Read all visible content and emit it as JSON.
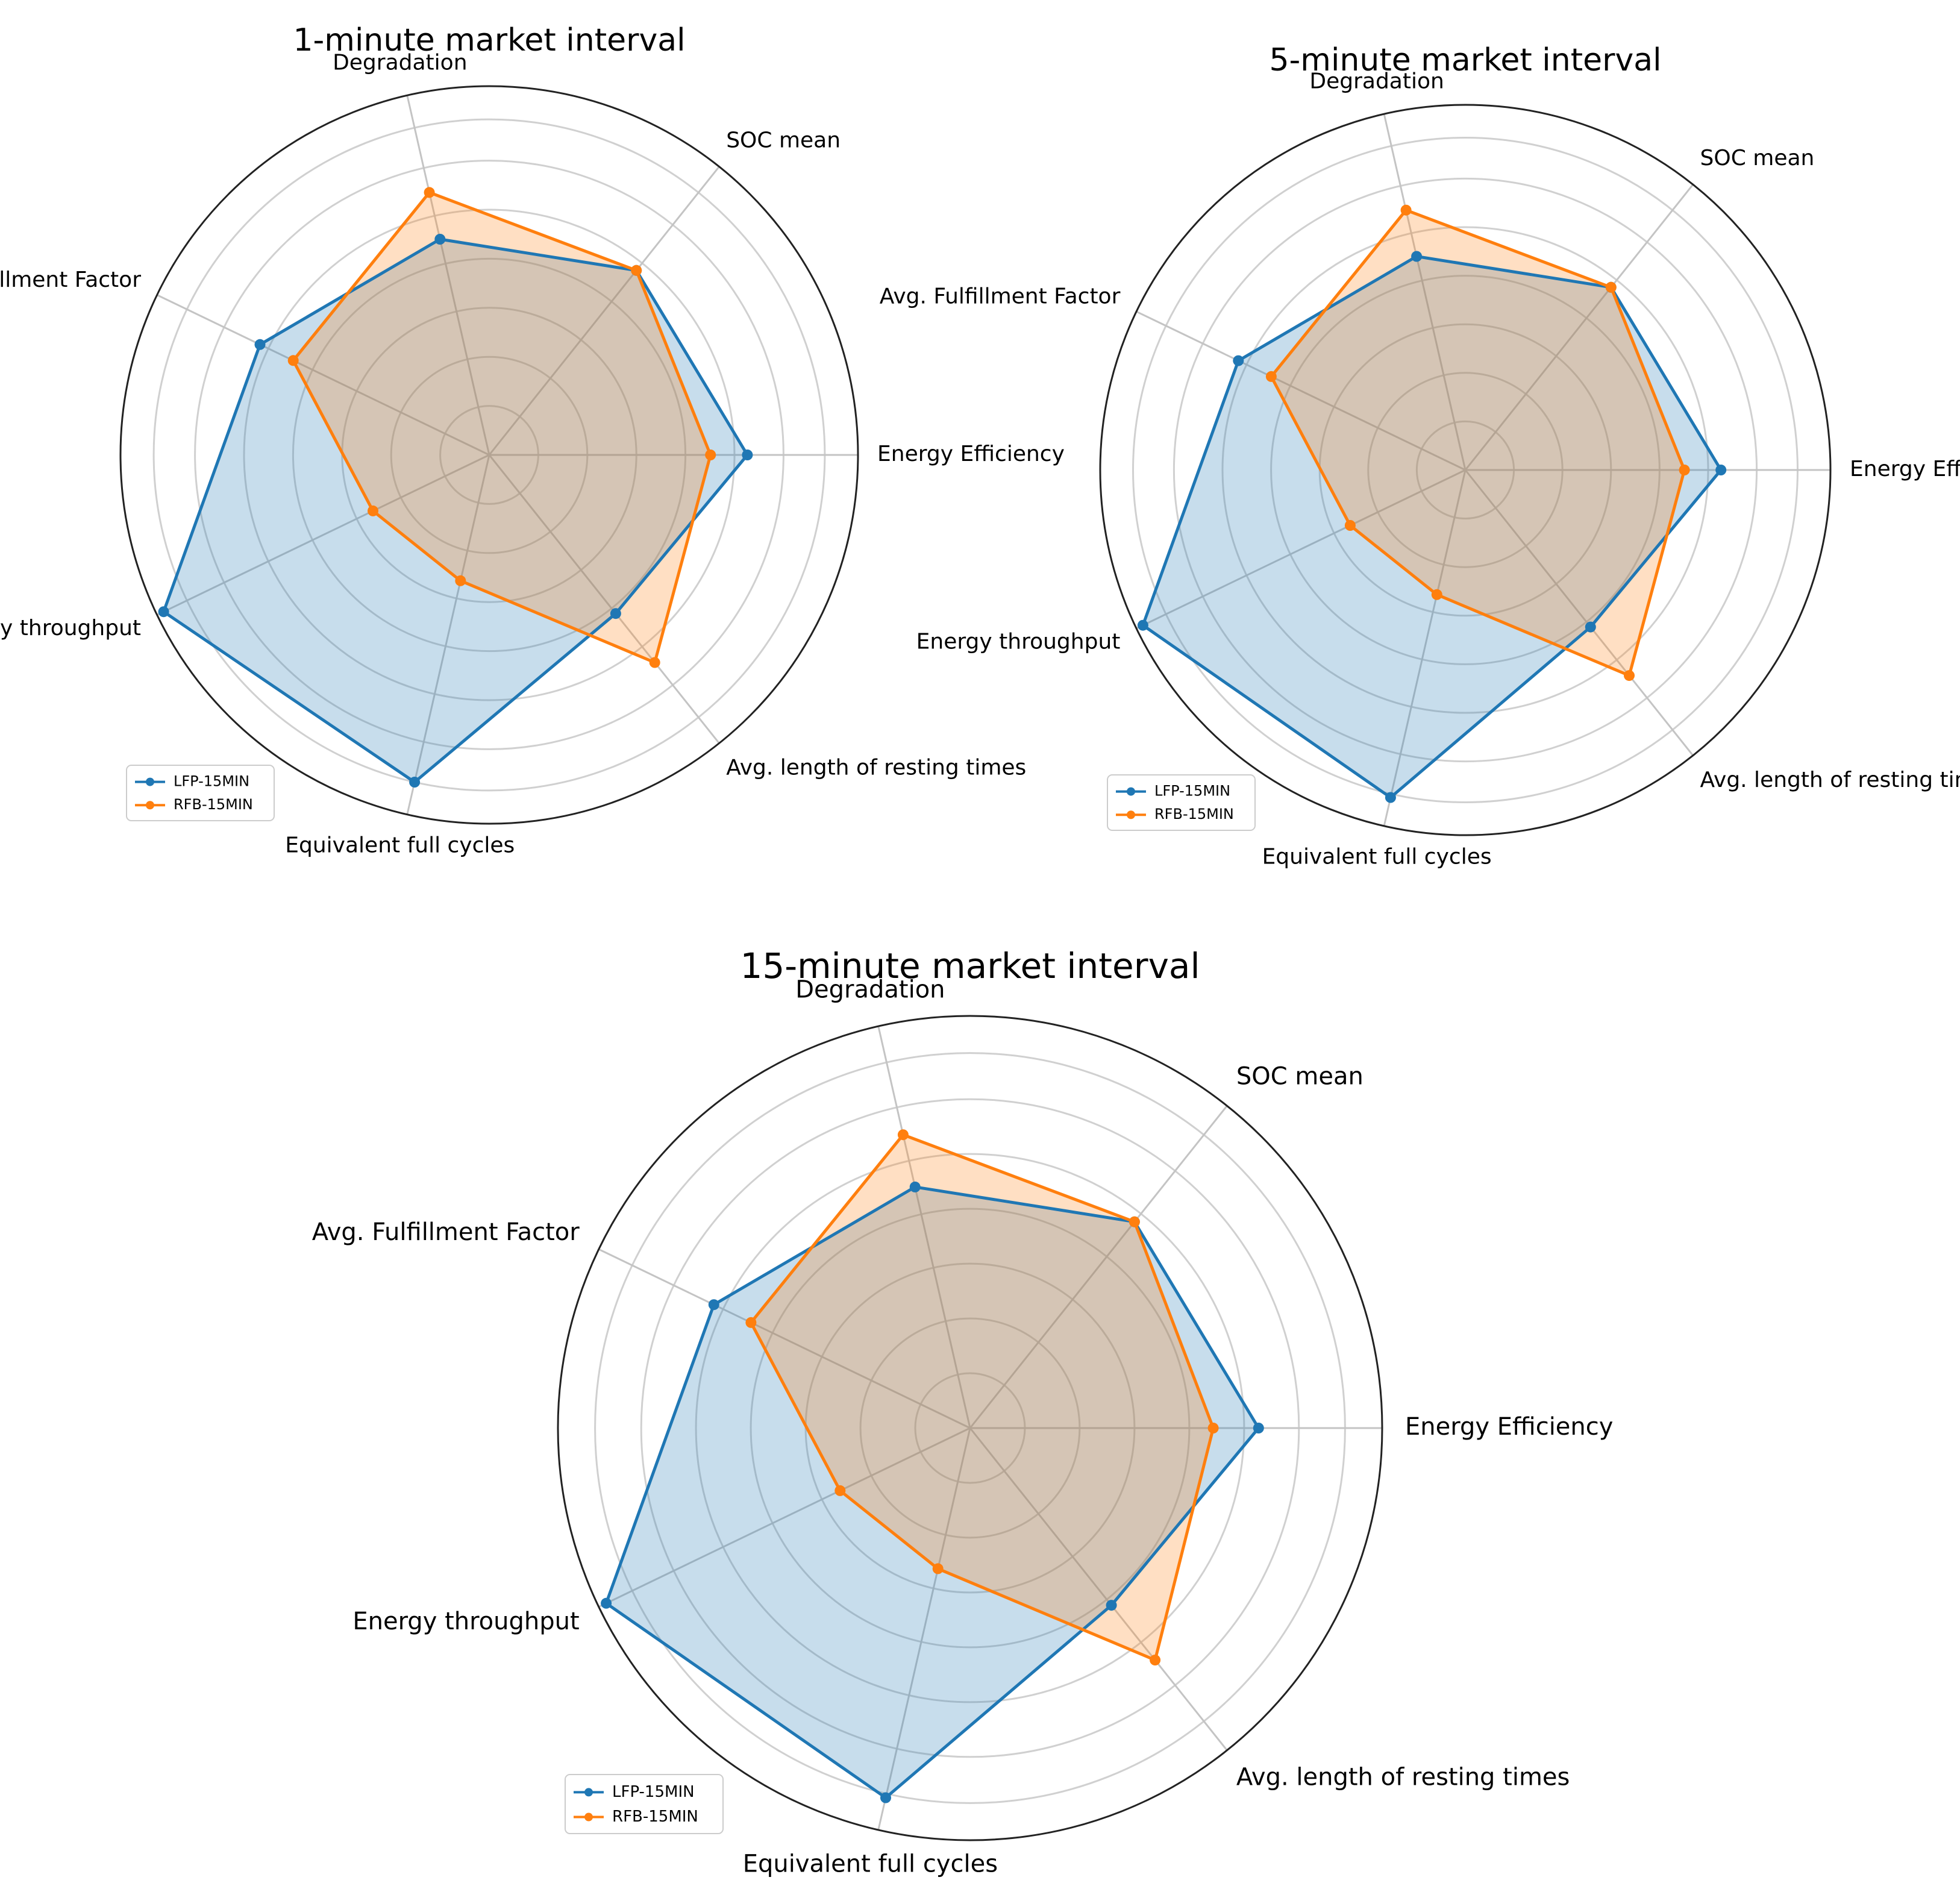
{
  "chart_data": [
    {
      "type": "radar",
      "title": "1-minute market interval",
      "axes": [
        "Energy Efficiency",
        "SOC mean",
        "Degradation",
        "Avg. Fulfillment Factor",
        "Energy throughput",
        "Equivalent full cycles",
        "Avg. length of resting times"
      ],
      "rlim": [
        0,
        1
      ],
      "grid": true,
      "legend_position": "lower-left",
      "series": [
        {
          "name": "LFP-15MIN",
          "color": "#1f77b4",
          "values": [
            0.7,
            0.64,
            0.6,
            0.69,
            0.98,
            0.91,
            0.55
          ]
        },
        {
          "name": "RFB-15MIN",
          "color": "#ff7f0e",
          "values": [
            0.6,
            0.64,
            0.73,
            0.59,
            0.35,
            0.35,
            0.72
          ]
        }
      ]
    },
    {
      "type": "radar",
      "title": "5-minute market interval",
      "axes": [
        "Energy Efficiency",
        "SOC mean",
        "Degradation",
        "Avg. Fulfillment Factor",
        "Energy throughput",
        "Equivalent full cycles",
        "Avg. length of resting times"
      ],
      "rlim": [
        0,
        1
      ],
      "grid": true,
      "legend_position": "lower-left",
      "series": [
        {
          "name": "LFP-15MIN",
          "color": "#1f77b4",
          "values": [
            0.7,
            0.64,
            0.6,
            0.69,
            0.98,
            0.92,
            0.55
          ]
        },
        {
          "name": "RFB-15MIN",
          "color": "#ff7f0e",
          "values": [
            0.6,
            0.64,
            0.73,
            0.59,
            0.35,
            0.35,
            0.72
          ]
        }
      ]
    },
    {
      "type": "radar",
      "title": "15-minute market interval",
      "axes": [
        "Energy Efficiency",
        "SOC mean",
        "Degradation",
        "Avg. Fulfillment Factor",
        "Energy throughput",
        "Equivalent full cycles",
        "Avg. length of resting times"
      ],
      "rlim": [
        0,
        1
      ],
      "grid": true,
      "legend_position": "lower-left",
      "series": [
        {
          "name": "LFP-15MIN",
          "color": "#1f77b4",
          "values": [
            0.7,
            0.64,
            0.6,
            0.69,
            0.98,
            0.92,
            0.55
          ]
        },
        {
          "name": "RFB-15MIN",
          "color": "#ff7f0e",
          "values": [
            0.59,
            0.64,
            0.73,
            0.59,
            0.35,
            0.35,
            0.72
          ]
        }
      ]
    }
  ]
}
